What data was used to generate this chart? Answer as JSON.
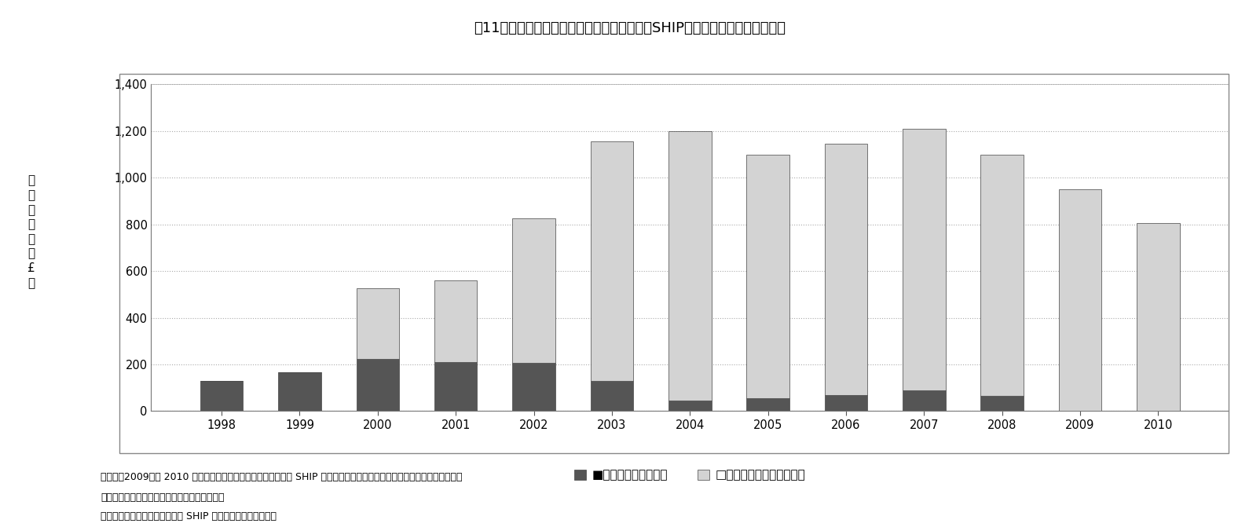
{
  "years": [
    1998,
    1999,
    2000,
    2001,
    2002,
    2003,
    2004,
    2005,
    2006,
    2007,
    2008,
    2009,
    2010
  ],
  "home_reversion": [
    130,
    165,
    225,
    210,
    205,
    130,
    45,
    55,
    70,
    90,
    65,
    0,
    0
  ],
  "lifetime_mortgage": [
    0,
    0,
    300,
    350,
    620,
    1025,
    1155,
    1045,
    1075,
    1120,
    1035,
    950,
    805
  ],
  "hr_color": "#555555",
  "lm_color": "#d3d3d3",
  "bar_edge_color": "#444444",
  "title": "図11　エクイティ・リリース融資額の推移（SHIP加盟各社、金融危機前後）",
  "ylabel_chars": [
    "融",
    "資",
    "額",
    "（",
    "百",
    "万",
    "£",
    "）"
  ],
  "ylim": [
    0,
    1400
  ],
  "yticks": [
    0,
    200,
    400,
    600,
    800,
    1000,
    1200,
    1400
  ],
  "ytick_labels": [
    "0",
    "200",
    "400",
    "600",
    "800",
    "1,000",
    "1,200",
    "1,400"
  ],
  "legend_hr": "■ホームリバージョン",
  "legend_lm": "□ライフタイムモーゲージ",
  "note_line1": "（注）　2009年と 2010 年のホーム・リバージョンのデータは SHIP 情報では不明。同商品を取り扱う会員が減ったため、",
  "note_line2": "　　　データ収集を止めたものと判断される。",
  "note_line3": "（資料）山国土交通省資料及び SHIP 関連資料に基づき作成。",
  "background_color": "#ffffff",
  "bar_width": 0.55
}
